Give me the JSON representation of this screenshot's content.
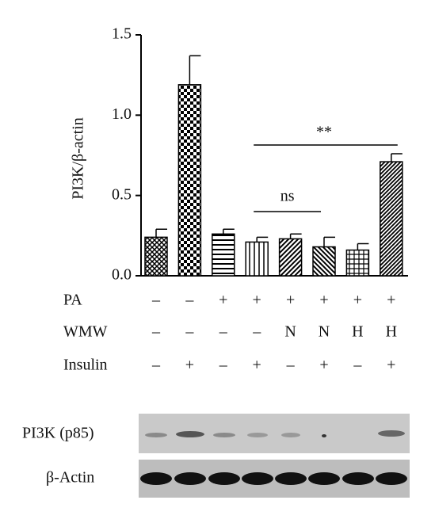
{
  "chart_data": {
    "type": "bar",
    "y_label": "PI3K/β-actin",
    "categories": [
      null,
      null,
      null,
      null,
      null,
      null,
      null,
      null
    ],
    "values": [
      0.24,
      1.19,
      0.26,
      0.21,
      0.23,
      0.18,
      0.16,
      0.71
    ],
    "errors": [
      0.05,
      0.18,
      0.03,
      0.03,
      0.03,
      0.06,
      0.04,
      0.05
    ],
    "color": "#000000",
    "ylim": [
      0,
      1.5
    ],
    "yticks": [
      {
        "value": 0,
        "label": "0.0"
      },
      {
        "value": 0.5,
        "label": "0.5"
      },
      {
        "value": 1,
        "label": "1.0"
      },
      {
        "value": 1.5,
        "label": "1.5"
      }
    ],
    "annotations": [
      "ns",
      "**"
    ],
    "treatments": [
      {
        "name": "PA",
        "values": [
          "–",
          "–",
          "+",
          "+",
          "+",
          "+",
          "+",
          "+"
        ]
      },
      {
        "name": "WMW",
        "values": [
          "–",
          "–",
          "–",
          "–",
          "N",
          "N",
          "H",
          "H"
        ]
      },
      {
        "name": "Insulin",
        "values": [
          "–",
          "+",
          "–",
          "+",
          "–",
          "+",
          "–",
          "+"
        ]
      }
    ]
  },
  "blot": {
    "rows": [
      "PI3K (p85)",
      "β-Actin"
    ]
  }
}
